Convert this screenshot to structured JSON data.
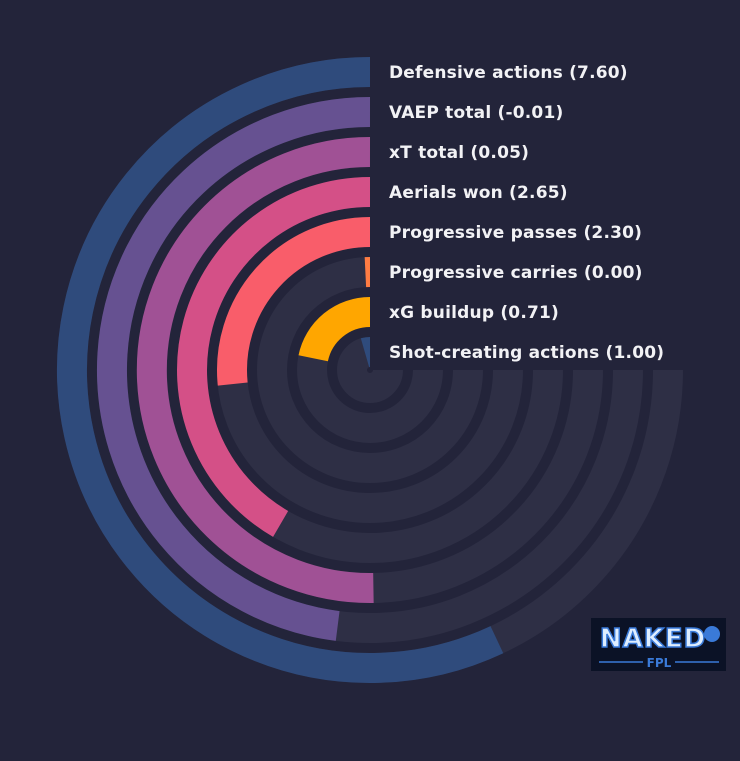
{
  "chart_data": {
    "type": "radial_bar",
    "title": "",
    "max_value": 10,
    "max_sweep_degrees": 270,
    "series": [
      {
        "label": "Defensive actions (7.60)",
        "value": 7.6,
        "color": "#2f4b7c"
      },
      {
        "label": "VAEP total (-0.01)",
        "value": 6.4,
        "color": "#665191"
      },
      {
        "label": "xT total (0.05)",
        "value": 6.7,
        "color": "#a05195"
      },
      {
        "label": "Aerials won (2.65)",
        "value": 5.55,
        "color": "#d45087"
      },
      {
        "label": "Progressive passes (2.30)",
        "value": 3.55,
        "color": "#f95d6a"
      },
      {
        "label": "Progressive carries (0.00)",
        "value": 0.1,
        "color": "#ff7c43"
      },
      {
        "label": "xG buildup (0.71)",
        "value": 2.9,
        "color": "#ffa600"
      },
      {
        "label": "Shot-creating actions (1.00)",
        "value": 0.6,
        "color": "#2f4b7c"
      }
    ],
    "track_color": "#2e2f45"
  },
  "logo": {
    "brand": "NAKED",
    "sub": "FPL"
  }
}
